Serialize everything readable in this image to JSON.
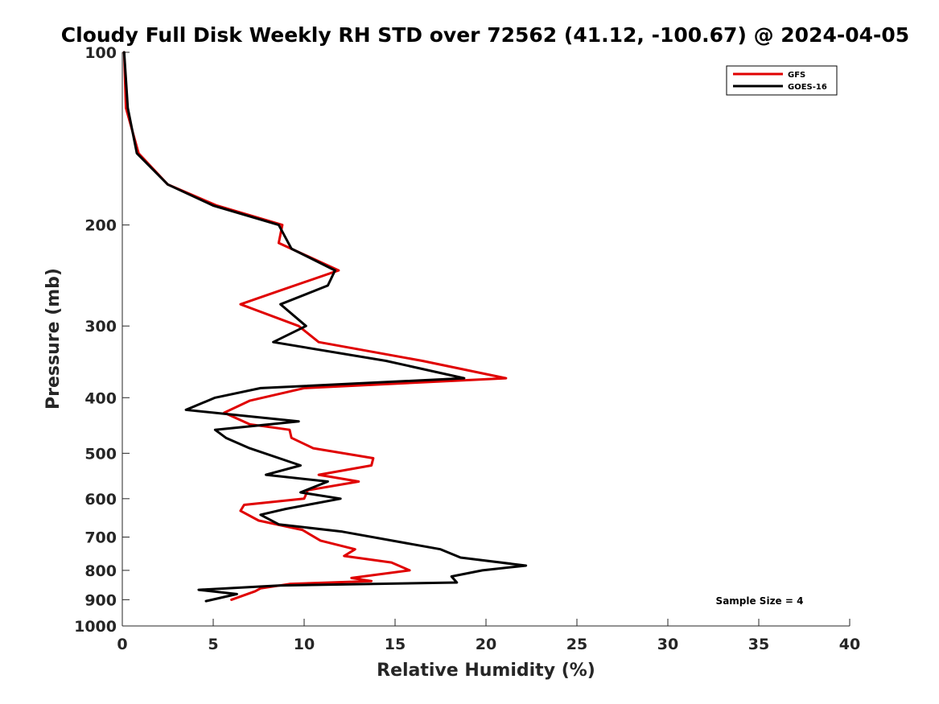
{
  "chart_data": {
    "type": "line",
    "title": "Cloudy Full Disk Weekly RH STD over 72562 (41.12, -100.67) @ 2024-04-05",
    "xlabel": "Relative Humidity (%)",
    "ylabel": "Pressure (mb)",
    "xlim": [
      0,
      40
    ],
    "ylim": [
      100,
      1000
    ],
    "y_scale": "log",
    "y_reversed": true,
    "x_ticks": [
      0,
      5,
      10,
      15,
      20,
      25,
      30,
      35,
      40
    ],
    "y_ticks": [
      100,
      200,
      300,
      400,
      500,
      600,
      700,
      800,
      900,
      1000
    ],
    "grid": false,
    "legend_position": "top-right",
    "annotation": "Sample Size = 4",
    "series": [
      {
        "name": "GFS",
        "color": "#e00000",
        "points": [
          [
            0.1,
            100
          ],
          [
            0.2,
            125
          ],
          [
            0.9,
            150
          ],
          [
            2.5,
            170
          ],
          [
            5.2,
            185
          ],
          [
            8.8,
            200
          ],
          [
            8.6,
            215
          ],
          [
            11.9,
            240
          ],
          [
            8.7,
            260
          ],
          [
            6.5,
            275
          ],
          [
            9.7,
            300
          ],
          [
            10.8,
            320
          ],
          [
            16.5,
            345
          ],
          [
            21.1,
            370
          ],
          [
            10.0,
            385
          ],
          [
            7.0,
            405
          ],
          [
            5.6,
            425
          ],
          [
            7.0,
            445
          ],
          [
            9.2,
            455
          ],
          [
            9.3,
            470
          ],
          [
            10.5,
            490
          ],
          [
            13.8,
            510
          ],
          [
            13.7,
            525
          ],
          [
            10.8,
            545
          ],
          [
            13.0,
            560
          ],
          [
            10.2,
            580
          ],
          [
            10.0,
            600
          ],
          [
            6.7,
            615
          ],
          [
            6.5,
            630
          ],
          [
            7.5,
            655
          ],
          [
            9.9,
            680
          ],
          [
            10.9,
            710
          ],
          [
            12.8,
            735
          ],
          [
            12.2,
            755
          ],
          [
            14.8,
            775
          ],
          [
            15.8,
            800
          ],
          [
            12.6,
            825
          ],
          [
            13.7,
            835
          ],
          [
            9.2,
            845
          ],
          [
            7.6,
            860
          ],
          [
            7.3,
            870
          ],
          [
            6.0,
            900
          ]
        ]
      },
      {
        "name": "GOES-16",
        "color": "#000000",
        "points": [
          [
            0.1,
            100
          ],
          [
            0.3,
            125
          ],
          [
            0.8,
            150
          ],
          [
            2.5,
            170
          ],
          [
            5.0,
            185
          ],
          [
            8.6,
            200
          ],
          [
            9.3,
            220
          ],
          [
            11.7,
            240
          ],
          [
            11.3,
            255
          ],
          [
            8.7,
            275
          ],
          [
            10.1,
            300
          ],
          [
            8.3,
            320
          ],
          [
            14.5,
            345
          ],
          [
            18.8,
            370
          ],
          [
            7.6,
            385
          ],
          [
            5.1,
            400
          ],
          [
            3.5,
            420
          ],
          [
            9.7,
            440
          ],
          [
            5.1,
            455
          ],
          [
            5.7,
            470
          ],
          [
            7.0,
            490
          ],
          [
            9.8,
            525
          ],
          [
            7.9,
            545
          ],
          [
            11.3,
            560
          ],
          [
            9.8,
            585
          ],
          [
            12.0,
            600
          ],
          [
            9.0,
            625
          ],
          [
            7.6,
            640
          ],
          [
            8.6,
            665
          ],
          [
            12.1,
            685
          ],
          [
            17.5,
            735
          ],
          [
            18.6,
            760
          ],
          [
            22.2,
            785
          ],
          [
            19.8,
            800
          ],
          [
            18.1,
            820
          ],
          [
            18.4,
            840
          ],
          [
            13.8,
            845
          ],
          [
            8.6,
            850
          ],
          [
            4.2,
            865
          ],
          [
            6.3,
            880
          ],
          [
            4.6,
            905
          ]
        ]
      }
    ]
  }
}
